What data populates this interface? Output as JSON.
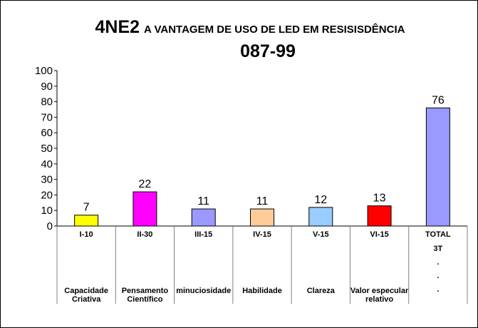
{
  "chart_data": {
    "type": "bar",
    "title_code": "4NE2",
    "title": "A VANTAGEM DE USO DE LED EM RESISISDÊNCIA",
    "subtitle": "087-99",
    "xlabel": "",
    "ylabel": "",
    "ylim": [
      0,
      100
    ],
    "yticks": [
      0,
      10,
      20,
      30,
      40,
      50,
      60,
      70,
      80,
      90,
      100
    ],
    "grid": false,
    "legend": "none",
    "categories": [
      {
        "code": "I-10",
        "label": [
          "Capacidade",
          "Criativa"
        ],
        "value": 7,
        "color": "#FFFF00"
      },
      {
        "code": "II-30",
        "label": [
          "Pensamento",
          "Científico"
        ],
        "value": 22,
        "color": "#FF00FF"
      },
      {
        "code": "III-15",
        "label": [
          "minuciosidade"
        ],
        "value": 11,
        "color": "#9999FF"
      },
      {
        "code": "IV-15",
        "label": [
          "Habilidade"
        ],
        "value": 11,
        "color": "#FFCC99"
      },
      {
        "code": "V-15",
        "label": [
          "Clareza"
        ],
        "value": 12,
        "color": "#99CCFF"
      },
      {
        "code": "VI-15",
        "label": [
          "Valor especular",
          "relativo"
        ],
        "value": 13,
        "color": "#FF0000"
      },
      {
        "code": "TOTAL",
        "sublabels": [
          "3T",
          ".",
          ".",
          "."
        ],
        "label": [],
        "value": 76,
        "color": "#9999FF"
      }
    ]
  }
}
